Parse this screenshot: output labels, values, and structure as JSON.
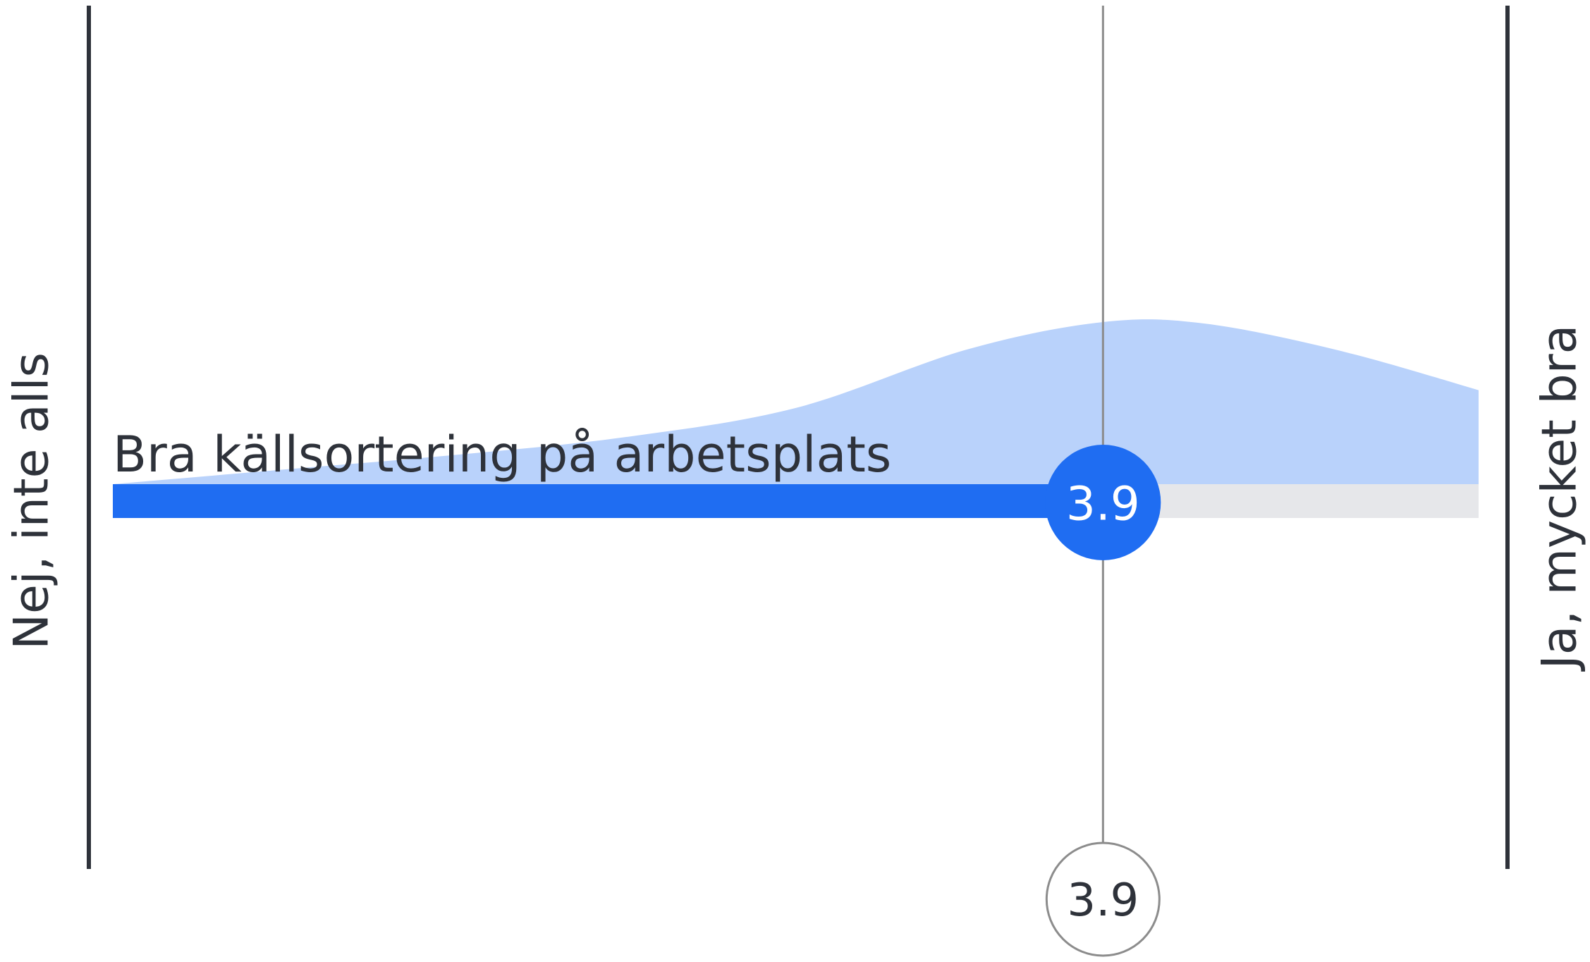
{
  "chart_data": {
    "type": "area",
    "scale": {
      "min": 1,
      "max": 5,
      "min_label": "Nej, inte alls",
      "max_label": "Ja, mycket bra"
    },
    "items": [
      {
        "label": "Bra källsortering på arbetsplats",
        "value": 3.9,
        "value_text": "3.9"
      }
    ],
    "average": {
      "value": 3.9,
      "value_text": "3.9"
    },
    "distribution": {
      "x": [
        1,
        1.5,
        2,
        2.5,
        3,
        3.5,
        3.9,
        4.2,
        4.6,
        5
      ],
      "density": [
        0,
        0.09,
        0.18,
        0.29,
        0.47,
        0.83,
        1.0,
        0.99,
        0.82,
        0.58
      ]
    },
    "colors": {
      "bar_fill": "#1f6df2",
      "bar_track": "#e6e7ea",
      "distribution_fill": "#b9d2fb",
      "axis_line": "#2e323a",
      "reference_line": "#8c8c8c",
      "text": "#2e323a",
      "marker_text": "#ffffff"
    }
  }
}
